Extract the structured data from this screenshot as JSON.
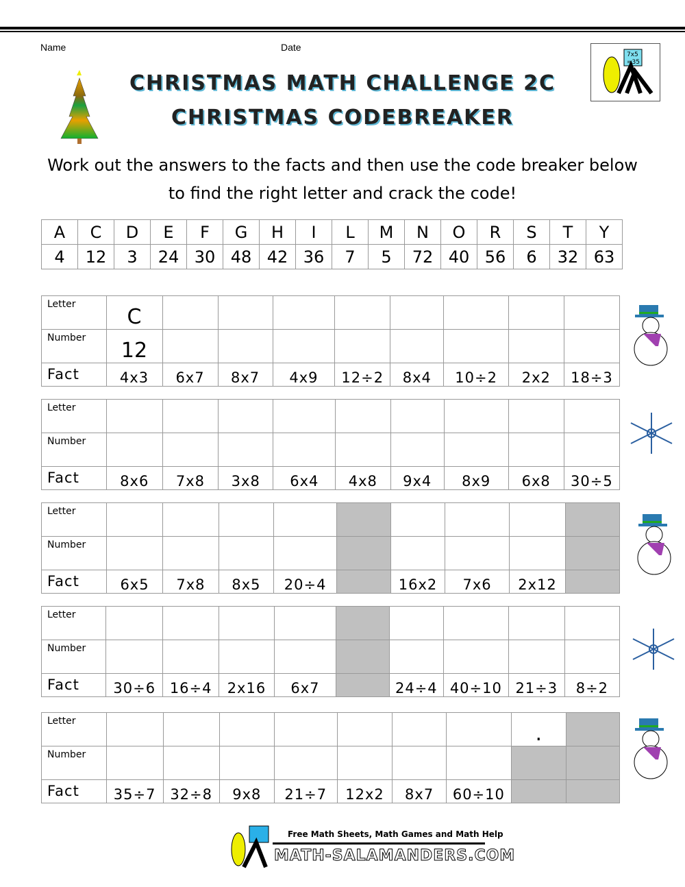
{
  "header": {
    "name_label": "Name",
    "date_label": "Date",
    "title_line1": "CHRISTMAS MATH CHALLENGE 2C",
    "title_line2": "CHRISTMAS CODEBREAKER",
    "instructions_line1": "Work out the answers to the facts and then use the code breaker below",
    "instructions_line2": "to find the right letter and crack the code!",
    "logo_text": "7x5 =35"
  },
  "code": {
    "letters": [
      "A",
      "C",
      "D",
      "E",
      "F",
      "G",
      "H",
      "I",
      "L",
      "M",
      "N",
      "O",
      "R",
      "S",
      "T",
      "Y"
    ],
    "numbers": [
      "4",
      "12",
      "3",
      "24",
      "30",
      "48",
      "42",
      "36",
      "7",
      "5",
      "72",
      "40",
      "56",
      "6",
      "32",
      "63"
    ]
  },
  "row_labels": {
    "letter": "Letter",
    "number": "Number",
    "fact": "Fact"
  },
  "worksheets": [
    {
      "letters": [
        "C",
        "",
        "",
        "",
        "",
        "",
        "",
        "",
        ""
      ],
      "numbers": [
        "12",
        "",
        "",
        "",
        "",
        "",
        "",
        "",
        ""
      ],
      "facts": [
        "4x3",
        "6x7",
        "8x7",
        "4x9",
        "12÷2",
        "8x4",
        "10÷2",
        "2x2",
        "18÷3"
      ],
      "shaded": []
    },
    {
      "letters": [
        "",
        "",
        "",
        "",
        "",
        "",
        "",
        "",
        ""
      ],
      "numbers": [
        "",
        "",
        "",
        "",
        "",
        "",
        "",
        "",
        ""
      ],
      "facts": [
        "8x6",
        "7x8",
        "3x8",
        "6x4",
        "4x8",
        "9x4",
        "8x9",
        "6x8",
        "30÷5"
      ],
      "shaded": []
    },
    {
      "letters": [
        "",
        "",
        "",
        "",
        "",
        "",
        "",
        "",
        ""
      ],
      "numbers": [
        "",
        "",
        "",
        "",
        "",
        "",
        "",
        "",
        ""
      ],
      "facts": [
        "6x5",
        "7x8",
        "8x5",
        "20÷4",
        "",
        "16x2",
        "7x6",
        "2x12",
        ""
      ],
      "shaded": [
        "4:all",
        "8:all"
      ]
    },
    {
      "letters": [
        "",
        "",
        "",
        "",
        "",
        "",
        "",
        "",
        ""
      ],
      "numbers": [
        "",
        "",
        "",
        "",
        "",
        "",
        "",
        "",
        ""
      ],
      "facts": [
        "30÷6",
        "16÷4",
        "2x16",
        "6x7",
        "",
        "24÷4",
        "40÷10",
        "21÷3",
        "8÷2"
      ],
      "shaded": [
        "4:all"
      ]
    },
    {
      "letters": [
        "",
        "",
        "",
        "",
        "",
        "",
        "",
        ".",
        ""
      ],
      "numbers": [
        "",
        "",
        "",
        "",
        "",
        "",
        "",
        "",
        ""
      ],
      "facts": [
        "35÷7",
        "32÷8",
        "9x8",
        "21÷7",
        "12x2",
        "8x7",
        "60÷10",
        "",
        ""
      ],
      "shaded": [
        "7:nf",
        "8:all"
      ]
    }
  ],
  "footer": {
    "tagline": "Free Math Sheets, Math Games and Math Help",
    "site": "MATH-SALAMANDERS.COM"
  }
}
